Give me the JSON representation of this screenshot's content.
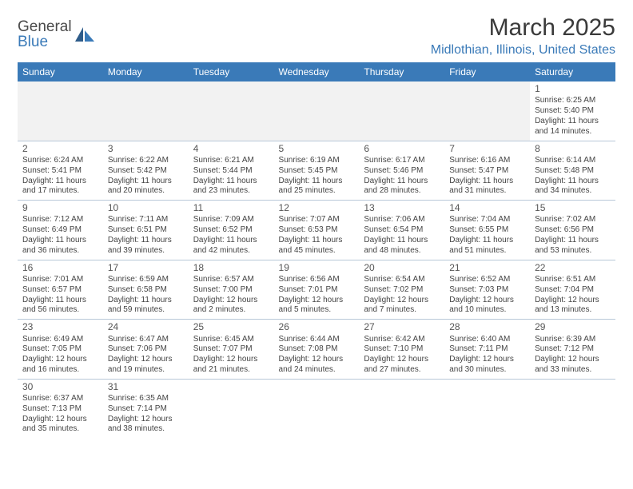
{
  "logo": {
    "general": "General",
    "blue": "Blue"
  },
  "title": "March 2025",
  "location": "Midlothian, Illinois, United States",
  "colors": {
    "header_bg": "#3a7ab8",
    "header_fg": "#ffffff",
    "border": "#b8c8d8",
    "empty_bg": "#f2f2f2",
    "text": "#444444",
    "accent": "#3a7ab8"
  },
  "weekdays": [
    "Sunday",
    "Monday",
    "Tuesday",
    "Wednesday",
    "Thursday",
    "Friday",
    "Saturday"
  ],
  "weeks": [
    [
      null,
      null,
      null,
      null,
      null,
      null,
      {
        "n": "1",
        "sr": "Sunrise: 6:25 AM",
        "ss": "Sunset: 5:40 PM",
        "d1": "Daylight: 11 hours",
        "d2": "and 14 minutes."
      }
    ],
    [
      {
        "n": "2",
        "sr": "Sunrise: 6:24 AM",
        "ss": "Sunset: 5:41 PM",
        "d1": "Daylight: 11 hours",
        "d2": "and 17 minutes."
      },
      {
        "n": "3",
        "sr": "Sunrise: 6:22 AM",
        "ss": "Sunset: 5:42 PM",
        "d1": "Daylight: 11 hours",
        "d2": "and 20 minutes."
      },
      {
        "n": "4",
        "sr": "Sunrise: 6:21 AM",
        "ss": "Sunset: 5:44 PM",
        "d1": "Daylight: 11 hours",
        "d2": "and 23 minutes."
      },
      {
        "n": "5",
        "sr": "Sunrise: 6:19 AM",
        "ss": "Sunset: 5:45 PM",
        "d1": "Daylight: 11 hours",
        "d2": "and 25 minutes."
      },
      {
        "n": "6",
        "sr": "Sunrise: 6:17 AM",
        "ss": "Sunset: 5:46 PM",
        "d1": "Daylight: 11 hours",
        "d2": "and 28 minutes."
      },
      {
        "n": "7",
        "sr": "Sunrise: 6:16 AM",
        "ss": "Sunset: 5:47 PM",
        "d1": "Daylight: 11 hours",
        "d2": "and 31 minutes."
      },
      {
        "n": "8",
        "sr": "Sunrise: 6:14 AM",
        "ss": "Sunset: 5:48 PM",
        "d1": "Daylight: 11 hours",
        "d2": "and 34 minutes."
      }
    ],
    [
      {
        "n": "9",
        "sr": "Sunrise: 7:12 AM",
        "ss": "Sunset: 6:49 PM",
        "d1": "Daylight: 11 hours",
        "d2": "and 36 minutes."
      },
      {
        "n": "10",
        "sr": "Sunrise: 7:11 AM",
        "ss": "Sunset: 6:51 PM",
        "d1": "Daylight: 11 hours",
        "d2": "and 39 minutes."
      },
      {
        "n": "11",
        "sr": "Sunrise: 7:09 AM",
        "ss": "Sunset: 6:52 PM",
        "d1": "Daylight: 11 hours",
        "d2": "and 42 minutes."
      },
      {
        "n": "12",
        "sr": "Sunrise: 7:07 AM",
        "ss": "Sunset: 6:53 PM",
        "d1": "Daylight: 11 hours",
        "d2": "and 45 minutes."
      },
      {
        "n": "13",
        "sr": "Sunrise: 7:06 AM",
        "ss": "Sunset: 6:54 PM",
        "d1": "Daylight: 11 hours",
        "d2": "and 48 minutes."
      },
      {
        "n": "14",
        "sr": "Sunrise: 7:04 AM",
        "ss": "Sunset: 6:55 PM",
        "d1": "Daylight: 11 hours",
        "d2": "and 51 minutes."
      },
      {
        "n": "15",
        "sr": "Sunrise: 7:02 AM",
        "ss": "Sunset: 6:56 PM",
        "d1": "Daylight: 11 hours",
        "d2": "and 53 minutes."
      }
    ],
    [
      {
        "n": "16",
        "sr": "Sunrise: 7:01 AM",
        "ss": "Sunset: 6:57 PM",
        "d1": "Daylight: 11 hours",
        "d2": "and 56 minutes."
      },
      {
        "n": "17",
        "sr": "Sunrise: 6:59 AM",
        "ss": "Sunset: 6:58 PM",
        "d1": "Daylight: 11 hours",
        "d2": "and 59 minutes."
      },
      {
        "n": "18",
        "sr": "Sunrise: 6:57 AM",
        "ss": "Sunset: 7:00 PM",
        "d1": "Daylight: 12 hours",
        "d2": "and 2 minutes."
      },
      {
        "n": "19",
        "sr": "Sunrise: 6:56 AM",
        "ss": "Sunset: 7:01 PM",
        "d1": "Daylight: 12 hours",
        "d2": "and 5 minutes."
      },
      {
        "n": "20",
        "sr": "Sunrise: 6:54 AM",
        "ss": "Sunset: 7:02 PM",
        "d1": "Daylight: 12 hours",
        "d2": "and 7 minutes."
      },
      {
        "n": "21",
        "sr": "Sunrise: 6:52 AM",
        "ss": "Sunset: 7:03 PM",
        "d1": "Daylight: 12 hours",
        "d2": "and 10 minutes."
      },
      {
        "n": "22",
        "sr": "Sunrise: 6:51 AM",
        "ss": "Sunset: 7:04 PM",
        "d1": "Daylight: 12 hours",
        "d2": "and 13 minutes."
      }
    ],
    [
      {
        "n": "23",
        "sr": "Sunrise: 6:49 AM",
        "ss": "Sunset: 7:05 PM",
        "d1": "Daylight: 12 hours",
        "d2": "and 16 minutes."
      },
      {
        "n": "24",
        "sr": "Sunrise: 6:47 AM",
        "ss": "Sunset: 7:06 PM",
        "d1": "Daylight: 12 hours",
        "d2": "and 19 minutes."
      },
      {
        "n": "25",
        "sr": "Sunrise: 6:45 AM",
        "ss": "Sunset: 7:07 PM",
        "d1": "Daylight: 12 hours",
        "d2": "and 21 minutes."
      },
      {
        "n": "26",
        "sr": "Sunrise: 6:44 AM",
        "ss": "Sunset: 7:08 PM",
        "d1": "Daylight: 12 hours",
        "d2": "and 24 minutes."
      },
      {
        "n": "27",
        "sr": "Sunrise: 6:42 AM",
        "ss": "Sunset: 7:10 PM",
        "d1": "Daylight: 12 hours",
        "d2": "and 27 minutes."
      },
      {
        "n": "28",
        "sr": "Sunrise: 6:40 AM",
        "ss": "Sunset: 7:11 PM",
        "d1": "Daylight: 12 hours",
        "d2": "and 30 minutes."
      },
      {
        "n": "29",
        "sr": "Sunrise: 6:39 AM",
        "ss": "Sunset: 7:12 PM",
        "d1": "Daylight: 12 hours",
        "d2": "and 33 minutes."
      }
    ],
    [
      {
        "n": "30",
        "sr": "Sunrise: 6:37 AM",
        "ss": "Sunset: 7:13 PM",
        "d1": "Daylight: 12 hours",
        "d2": "and 35 minutes."
      },
      {
        "n": "31",
        "sr": "Sunrise: 6:35 AM",
        "ss": "Sunset: 7:14 PM",
        "d1": "Daylight: 12 hours",
        "d2": "and 38 minutes."
      },
      null,
      null,
      null,
      null,
      null
    ]
  ]
}
